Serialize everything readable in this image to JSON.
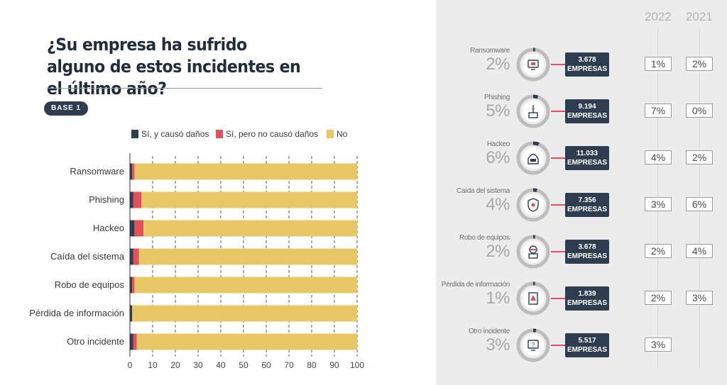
{
  "title": "¿Su empresa ha sufrido alguno de estos incidentes en el último año?",
  "base_label": "BASE 1",
  "colors": {
    "navy": "#2e3e50",
    "red": "#e05159",
    "yellow": "#e8c766"
  },
  "chart_data": {
    "type": "bar",
    "orientation": "horizontal",
    "stacked": true,
    "categories": [
      "Ransomware",
      "Phishing",
      "Hackeo",
      "Caída del sistema",
      "Robo de equipos",
      "Pérdida de información",
      "Otro incidente"
    ],
    "series": [
      {
        "name": "Sí, y causó daños",
        "color": "#2e3e50",
        "values": [
          1,
          1.5,
          2,
          1.5,
          1,
          1,
          1.5
        ]
      },
      {
        "name": "Sí, pero no causó daños",
        "color": "#e05159",
        "values": [
          1,
          3.5,
          4,
          2.5,
          1,
          0,
          1.5
        ]
      },
      {
        "name": "No",
        "color": "#e8c766",
        "values": [
          98,
          95,
          94,
          96,
          98,
          99,
          97
        ]
      }
    ],
    "xlim": [
      0,
      100
    ],
    "xticks": [
      0,
      10,
      20,
      30,
      40,
      50,
      60,
      70,
      80,
      90,
      100
    ],
    "grid": "vertical-dashed",
    "legend": "top"
  },
  "summary": {
    "year_headers": [
      "2022",
      "2021"
    ],
    "rows": [
      {
        "label": "Ransomware",
        "percent": "2%",
        "value": 2,
        "count": "3.678",
        "unit": "EMPRESAS",
        "y2022": "1%",
        "y2021": "2%",
        "icon": "monitor-lock-icon"
      },
      {
        "label": "Phishing",
        "percent": "5%",
        "value": 5,
        "count": "9.194",
        "unit": "EMPRESAS",
        "y2022": "7%",
        "y2021": "0%",
        "icon": "fishing-hook-icon"
      },
      {
        "label": "Hackeo",
        "percent": "6%",
        "value": 6,
        "count": "11.033",
        "unit": "EMPRESAS",
        "y2022": "4%",
        "y2021": "2%",
        "icon": "hacker-icon"
      },
      {
        "label": "Caída del sistema",
        "percent": "4%",
        "value": 4,
        "count": "7.356",
        "unit": "EMPRESAS",
        "y2022": "3%",
        "y2021": "6%",
        "icon": "shield-alert-icon"
      },
      {
        "label": "Robo de equipos",
        "percent": "2%",
        "value": 2,
        "count": "3.678",
        "unit": "EMPRESAS",
        "y2022": "2%",
        "y2021": "4%",
        "icon": "robber-icon"
      },
      {
        "label": "Pérdida de información",
        "percent": "1%",
        "value": 1,
        "count": "1.839",
        "unit": "EMPRESAS",
        "y2022": "2%",
        "y2021": "3%",
        "icon": "document-alert-icon"
      },
      {
        "label": "Otro incidente",
        "percent": "3%",
        "value": 3,
        "count": "5.517",
        "unit": "EMPRESAS",
        "y2022": "3%",
        "y2021": "",
        "icon": "monitor-question-icon"
      }
    ]
  }
}
